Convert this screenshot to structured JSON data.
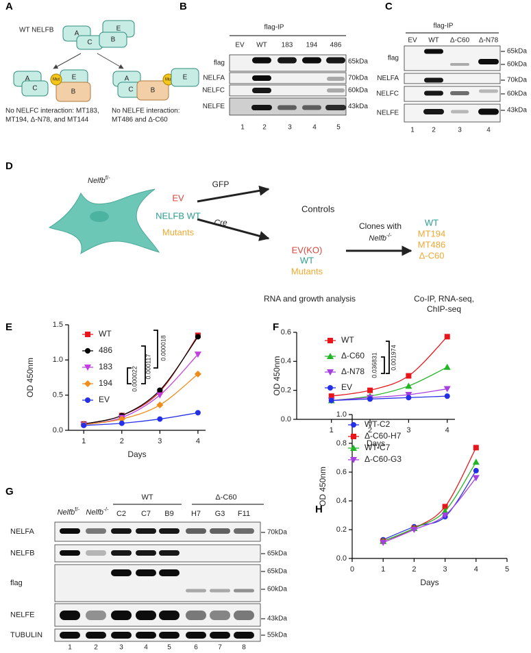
{
  "figure": {
    "panel_labels": [
      "A",
      "B",
      "C",
      "D",
      "E",
      "F",
      "G",
      "H"
    ],
    "panel_a": {
      "wt_label": "WT NELFB",
      "subunits": [
        "A",
        "E",
        "C",
        "B"
      ],
      "mut": "Mut",
      "caption_left": [
        "No NELFC interaction: MT183,",
        "MT194, Δ-N78, and MT144"
      ],
      "caption_right": [
        "No NELFE interaction:",
        "MT486 and Δ-C60"
      ]
    },
    "panel_b": {
      "title": "flag-IP",
      "lanes": [
        "EV",
        "WT",
        "183",
        "194",
        "486"
      ],
      "rows": [
        "flag",
        "NELFA",
        "NELFC",
        "NELFE"
      ],
      "sizes": [
        "65kDa",
        "70kDa",
        "60kDa",
        "43kDa"
      ],
      "lane_numbers": [
        1,
        2,
        3,
        4,
        5
      ]
    },
    "panel_c": {
      "title": "flag-IP",
      "lanes": [
        "EV",
        "WT",
        "Δ-C60",
        "Δ-N78"
      ],
      "rows": [
        "flag",
        "NELFA",
        "NELFC",
        "NELFE"
      ],
      "sizes": [
        "65kDa",
        "60kDa",
        "70kDa",
        "60kDa",
        "43kDa"
      ],
      "lane_numbers": [
        1,
        2,
        3,
        4
      ]
    },
    "panel_d": {
      "genotype": {
        "gene": "Nelfb",
        "allele": "f/-"
      },
      "constructs": [
        "EV",
        "NELFB WT",
        "Mutants"
      ],
      "gfp": "GFP",
      "controls": "Controls",
      "cre": "Cre",
      "cre_products": [
        "EV(KO)",
        "WT",
        "Mutants"
      ],
      "clones": "Clones with",
      "clones_genotype": {
        "gene": "Nelfb",
        "allele": "-/-"
      },
      "clone_list": [
        "WT",
        "MT194",
        "MT486",
        "Δ-C60"
      ],
      "analysis_left": "RNA and growth analysis",
      "analysis_right": [
        "Co-IP,  RNA-seq,",
        "ChIP-seq"
      ]
    },
    "panel_g": {
      "genotypes": [
        {
          "gene": "Nelfb",
          "allele": "f/-"
        },
        {
          "gene": "Nelfb",
          "allele": "-/-"
        }
      ],
      "groups": [
        "WT",
        "Δ-C60"
      ],
      "clones": [
        "C2",
        "C7",
        "B9",
        "H7",
        "G3",
        "F11"
      ],
      "rows": [
        "NELFA",
        "NELFB",
        "flag",
        "NELFE",
        "TUBULIN"
      ],
      "sizes": [
        "70kDa",
        "65kDa",
        "65kDa",
        "60kDa",
        "43kDa",
        "55kDa"
      ],
      "lane_numbers": [
        1,
        2,
        3,
        4,
        5,
        6,
        7,
        8
      ]
    }
  },
  "chart_data": [
    {
      "type": "line",
      "xlabel": "Days",
      "ylabel": "OD 450nm",
      "x": [
        1,
        2,
        3,
        4
      ],
      "xlim": [
        0.6,
        4.2
      ],
      "xticks": [
        1,
        2,
        3,
        4
      ],
      "ylim": [
        0,
        1.5
      ],
      "yticks": [
        {
          "value": 0,
          "label": "0.0"
        },
        {
          "value": 0.5,
          "label": "0.5"
        },
        {
          "value": 1,
          "label": "1.0"
        },
        {
          "value": 1.5,
          "label": "1.5"
        }
      ],
      "series": [
        {
          "name": "WT",
          "color": "#e8161b",
          "marker": "square",
          "values": [
            0.09,
            0.21,
            0.55,
            1.35
          ]
        },
        {
          "name": "486",
          "color": "#000000",
          "marker": "circle",
          "values": [
            0.09,
            0.21,
            0.57,
            1.33
          ]
        },
        {
          "name": "183",
          "color": "#c33fe0",
          "marker": "triangle-down",
          "values": [
            0.08,
            0.18,
            0.5,
            1.08
          ]
        },
        {
          "name": "194",
          "color": "#f08c1a",
          "marker": "diamond",
          "values": [
            0.08,
            0.16,
            0.36,
            0.8
          ]
        },
        {
          "name": "EV",
          "color": "#2430e8",
          "marker": "circle",
          "values": [
            0.07,
            0.1,
            0.16,
            0.25
          ]
        }
      ],
      "annotations": [
        "0.000022",
        "0.000117",
        "0.000018"
      ]
    },
    {
      "type": "line",
      "xlabel": "Days",
      "ylabel": "OD 450nm",
      "x": [
        1,
        2,
        3,
        4
      ],
      "xlim": [
        0.1,
        4.2
      ],
      "xticks": [
        1,
        2,
        3,
        4
      ],
      "ylim": [
        0,
        0.6
      ],
      "yticks": [
        {
          "value": 0,
          "label": "0.0"
        },
        {
          "value": 0.2,
          "label": "0.2"
        },
        {
          "value": 0.4,
          "label": "0.4"
        },
        {
          "value": 0.6,
          "label": "0.6"
        }
      ],
      "series": [
        {
          "name": "WT",
          "color": "#e8161b",
          "marker": "square",
          "values": [
            0.16,
            0.2,
            0.3,
            0.57
          ]
        },
        {
          "name": "Δ-C60",
          "color": "#22b526",
          "marker": "triangle",
          "values": [
            0.13,
            0.16,
            0.23,
            0.36
          ]
        },
        {
          "name": "Δ-N78",
          "color": "#a63fe0",
          "marker": "triangle-down",
          "values": [
            0.13,
            0.15,
            0.17,
            0.21
          ]
        },
        {
          "name": "EV",
          "color": "#2430e8",
          "marker": "circle",
          "values": [
            0.13,
            0.14,
            0.15,
            0.16
          ]
        }
      ],
      "annotations": [
        "0.036831",
        "0.001974"
      ]
    },
    {
      "type": "line",
      "xlabel": "Days",
      "ylabel": "OD 450nm",
      "x": [
        1,
        2,
        3,
        4
      ],
      "xlim": [
        0,
        5
      ],
      "xticks": [
        0,
        1,
        2,
        3,
        4,
        5
      ],
      "ylim": [
        0,
        1
      ],
      "yticks": [
        {
          "value": 0,
          "label": "0.0"
        },
        {
          "value": 0.2,
          "label": "0.2"
        },
        {
          "value": 0.4,
          "label": "0.4"
        },
        {
          "value": 0.6,
          "label": "0.6"
        },
        {
          "value": 0.8,
          "label": "0.8"
        },
        {
          "value": 1,
          "label": "1.0"
        }
      ],
      "series": [
        {
          "name": "WT-C2",
          "color": "#2430e8",
          "marker": "circle",
          "values": [
            0.13,
            0.22,
            0.29,
            0.61
          ]
        },
        {
          "name": "Δ-C60-H7",
          "color": "#e8161b",
          "marker": "square",
          "values": [
            0.12,
            0.21,
            0.36,
            0.77
          ]
        },
        {
          "name": "WT-C7",
          "color": "#22b526",
          "marker": "triangle",
          "values": [
            0.12,
            0.21,
            0.33,
            0.67
          ]
        },
        {
          "name": "Δ-C60-G3",
          "color": "#a63fe0",
          "marker": "triangle-down",
          "values": [
            0.11,
            0.2,
            0.3,
            0.56
          ]
        }
      ]
    }
  ]
}
